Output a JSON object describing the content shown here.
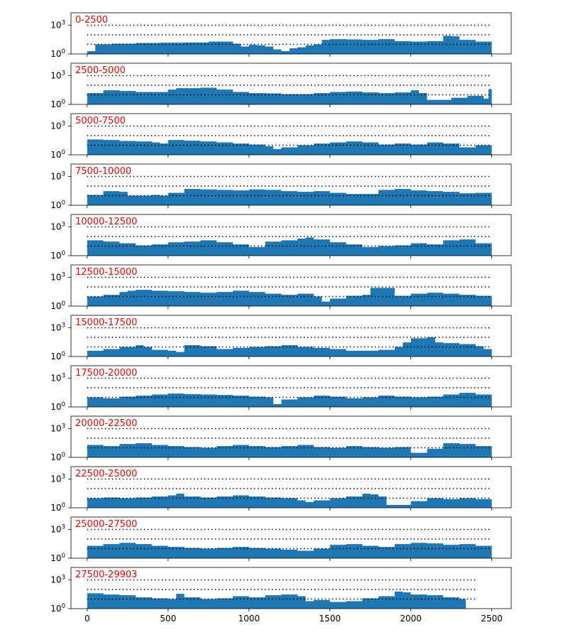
{
  "chart_data": {
    "type": "area",
    "subtype": "stacked-panels",
    "scale_y": "log",
    "ylim": [
      1,
      20000
    ],
    "xlim": [
      -100,
      2620
    ],
    "x_ticks": [
      0,
      500,
      1000,
      1500,
      2000,
      2500
    ],
    "x_tick_labels": [
      "0",
      "500",
      "1000",
      "1500",
      "2000",
      "2500"
    ],
    "y_ticks": [
      {
        "base": "10",
        "exp": "0"
      },
      {
        "base": "10",
        "exp": "3"
      }
    ],
    "reference_lines": [
      10,
      100,
      1000
    ],
    "reference_line_style": "dotted",
    "colors": {
      "fill": "#1f77b4",
      "label": "#ff0000",
      "ref_line": "#000000"
    },
    "label_placement": "top-left",
    "panels": [
      {
        "label": "0-2500",
        "ref_end": 2500,
        "x": [
          0,
          30,
          50,
          150,
          300,
          450,
          600,
          750,
          900,
          950,
          1000,
          1050,
          1100,
          1150,
          1200,
          1250,
          1300,
          1350,
          1400,
          1450,
          1500,
          1600,
          1700,
          1800,
          1900,
          2000,
          2100,
          2200,
          2250,
          2300,
          2400,
          2500
        ],
        "y": [
          2,
          2,
          10,
          12,
          14,
          15,
          16,
          20,
          12,
          6,
          9,
          8,
          6,
          3,
          2,
          4,
          5,
          8,
          10,
          30,
          35,
          33,
          30,
          35,
          22,
          20,
          22,
          80,
          70,
          30,
          20,
          20
        ]
      },
      {
        "label": "2500-5000",
        "ref_end": 2500,
        "x": [
          0,
          100,
          200,
          300,
          400,
          500,
          550,
          700,
          800,
          900,
          1000,
          1100,
          1200,
          1300,
          1400,
          1500,
          1600,
          1700,
          1800,
          1900,
          2000,
          2050,
          2100,
          2200,
          2250,
          2350,
          2450,
          2480,
          2500
        ],
        "y": [
          15,
          30,
          25,
          20,
          20,
          35,
          50,
          55,
          35,
          20,
          15,
          14,
          12,
          12,
          15,
          20,
          22,
          18,
          15,
          18,
          30,
          15,
          3,
          3,
          5,
          8,
          4,
          40,
          40
        ]
      },
      {
        "label": "5000-7500",
        "ref_end": 2500,
        "x": [
          0,
          100,
          200,
          300,
          400,
          450,
          500,
          600,
          700,
          800,
          900,
          1000,
          1100,
          1150,
          1200,
          1300,
          1400,
          1500,
          1600,
          1700,
          1800,
          1900,
          2000,
          2100,
          2200,
          2300,
          2400,
          2500
        ],
        "y": [
          40,
          35,
          28,
          25,
          20,
          15,
          35,
          30,
          25,
          20,
          15,
          12,
          8,
          4,
          6,
          10,
          15,
          20,
          25,
          20,
          12,
          15,
          12,
          20,
          15,
          6,
          10,
          10
        ]
      },
      {
        "label": "7500-10000",
        "ref_end": 2500,
        "x": [
          0,
          100,
          200,
          250,
          400,
          450,
          500,
          600,
          700,
          800,
          900,
          1000,
          1100,
          1200,
          1300,
          1400,
          1500,
          1600,
          1700,
          1800,
          1900,
          2000,
          2100,
          2200,
          2300,
          2400,
          2500
        ],
        "y": [
          12,
          30,
          25,
          10,
          12,
          10,
          20,
          50,
          45,
          40,
          35,
          45,
          40,
          30,
          25,
          30,
          20,
          15,
          15,
          40,
          50,
          35,
          30,
          25,
          18,
          20,
          40
        ]
      },
      {
        "label": "10000-12500",
        "ref_end": 2500,
        "x": [
          0,
          100,
          200,
          300,
          400,
          500,
          600,
          700,
          800,
          900,
          1000,
          1100,
          1200,
          1300,
          1350,
          1400,
          1500,
          1600,
          1700,
          1800,
          1900,
          2000,
          2100,
          2200,
          2300,
          2400,
          2500
        ],
        "y": [
          40,
          30,
          20,
          12,
          15,
          25,
          30,
          40,
          25,
          15,
          8,
          30,
          40,
          60,
          80,
          50,
          25,
          15,
          8,
          10,
          12,
          20,
          15,
          40,
          50,
          20,
          10
        ]
      },
      {
        "label": "12500-15000",
        "ref_end": 2500,
        "x": [
          0,
          100,
          200,
          250,
          300,
          400,
          500,
          600,
          700,
          800,
          900,
          1000,
          1100,
          1200,
          1300,
          1400,
          1450,
          1500,
          1600,
          1700,
          1750,
          1850,
          1900,
          2000,
          2100,
          2200,
          2300,
          2400,
          2500
        ],
        "y": [
          10,
          15,
          30,
          40,
          50,
          40,
          35,
          30,
          25,
          30,
          40,
          30,
          20,
          15,
          20,
          10,
          3,
          6,
          12,
          15,
          80,
          80,
          12,
          20,
          25,
          20,
          15,
          12,
          15
        ]
      },
      {
        "label": "15000-17500",
        "ref_end": 2500,
        "x": [
          0,
          100,
          200,
          300,
          350,
          400,
          500,
          550,
          600,
          700,
          800,
          900,
          1000,
          1100,
          1200,
          1300,
          1400,
          1500,
          1600,
          1700,
          1800,
          1900,
          1950,
          2000,
          2100,
          2150,
          2200,
          2300,
          2400,
          2450,
          2500
        ],
        "y": [
          4,
          6,
          10,
          15,
          10,
          5,
          4,
          3,
          15,
          12,
          6,
          8,
          10,
          12,
          15,
          10,
          8,
          6,
          4,
          4,
          5,
          10,
          30,
          80,
          100,
          30,
          25,
          20,
          12,
          6,
          6
        ]
      },
      {
        "label": "17500-20000",
        "ref_end": 2500,
        "x": [
          0,
          100,
          200,
          300,
          400,
          500,
          600,
          700,
          800,
          900,
          1000,
          1100,
          1150,
          1200,
          1300,
          1400,
          1500,
          1600,
          1700,
          1800,
          1900,
          2000,
          2100,
          2200,
          2300,
          2400,
          2500
        ],
        "y": [
          10,
          8,
          12,
          15,
          20,
          25,
          22,
          20,
          18,
          15,
          12,
          10,
          2,
          6,
          10,
          15,
          12,
          8,
          10,
          15,
          12,
          10,
          12,
          20,
          30,
          20,
          20
        ]
      },
      {
        "label": "20000-22500",
        "ref_end": 2500,
        "x": [
          0,
          100,
          200,
          300,
          400,
          500,
          600,
          700,
          800,
          900,
          1000,
          1100,
          1200,
          1300,
          1400,
          1500,
          1600,
          1700,
          1800,
          1900,
          2000,
          2050,
          2100,
          2200,
          2300,
          2400,
          2500
        ],
        "y": [
          20,
          15,
          25,
          30,
          20,
          15,
          12,
          10,
          15,
          20,
          15,
          12,
          15,
          20,
          12,
          10,
          15,
          12,
          10,
          12,
          3,
          3,
          8,
          30,
          25,
          15,
          10
        ]
      },
      {
        "label": "22500-25000",
        "ref_end": 2500,
        "x": [
          0,
          100,
          200,
          300,
          400,
          500,
          550,
          600,
          700,
          800,
          900,
          1000,
          1100,
          1200,
          1300,
          1350,
          1400,
          1500,
          1600,
          1700,
          1750,
          1800,
          1850,
          1900,
          2000,
          2100,
          2200,
          2300,
          2400,
          2500
        ],
        "y": [
          10,
          12,
          10,
          12,
          15,
          20,
          30,
          15,
          12,
          15,
          20,
          15,
          12,
          10,
          6,
          4,
          6,
          10,
          15,
          30,
          25,
          15,
          2,
          2,
          5,
          10,
          8,
          10,
          8,
          8
        ]
      },
      {
        "label": "25000-27500",
        "ref_end": 2500,
        "x": [
          0,
          100,
          200,
          300,
          400,
          500,
          600,
          700,
          800,
          900,
          1000,
          1100,
          1200,
          1300,
          1400,
          1500,
          1600,
          1700,
          1800,
          1900,
          2000,
          2100,
          2200,
          2300,
          2400,
          2500
        ],
        "y": [
          20,
          30,
          40,
          30,
          20,
          15,
          12,
          10,
          12,
          15,
          12,
          10,
          8,
          6,
          10,
          25,
          30,
          20,
          15,
          30,
          40,
          35,
          25,
          30,
          20,
          20
        ]
      },
      {
        "label": "27500-29903",
        "ref_end": 2400,
        "x": [
          0,
          100,
          200,
          300,
          400,
          500,
          550,
          600,
          700,
          800,
          900,
          1000,
          1100,
          1200,
          1300,
          1350,
          1400,
          1500,
          1600,
          1700,
          1800,
          1900,
          1950,
          2000,
          2100,
          2200,
          2300,
          2330,
          2340
        ],
        "y": [
          40,
          30,
          25,
          15,
          12,
          10,
          35,
          15,
          10,
          12,
          20,
          15,
          25,
          30,
          20,
          6,
          8,
          5,
          6,
          12,
          20,
          60,
          50,
          30,
          25,
          15,
          10,
          10,
          1
        ]
      }
    ]
  }
}
